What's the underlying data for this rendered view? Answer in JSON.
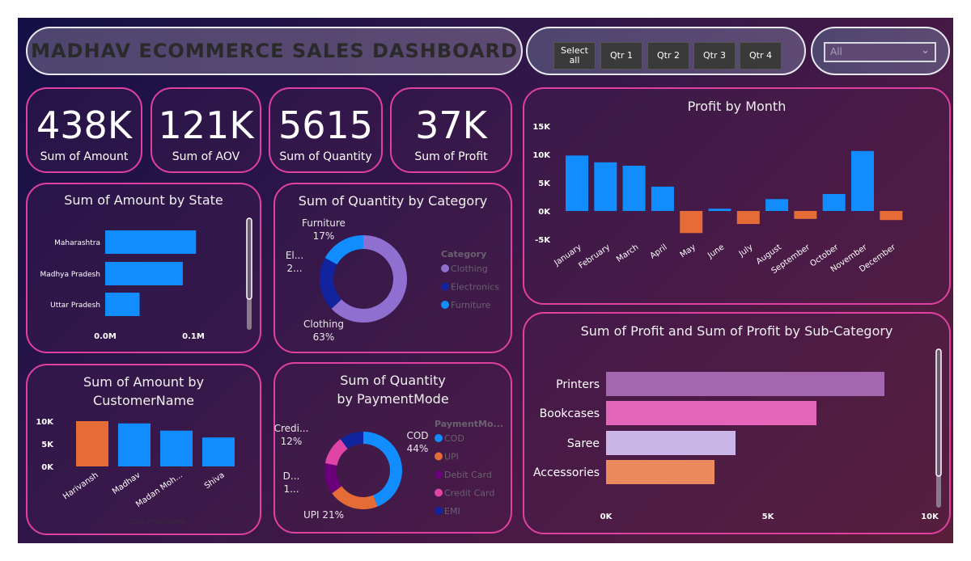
{
  "header": {
    "title": "MADHAV ECOMMERCE SALES DASHBOARD"
  },
  "slicer": {
    "buttons": [
      "Select all",
      "Qtr 1",
      "Qtr 2",
      "Qtr 3",
      "Qtr 4"
    ]
  },
  "dropdown": {
    "value": "All",
    "icon": "chevron-down-icon"
  },
  "kpis": [
    {
      "value": "438K",
      "label": "Sum of Amount"
    },
    {
      "value": "121K",
      "label": "Sum of AOV"
    },
    {
      "value": "5615",
      "label": "Sum of Quantity"
    },
    {
      "value": "37K",
      "label": "Sum of Profit"
    }
  ],
  "colors": {
    "blue": "#118dff",
    "orange": "#e66c37",
    "navy": "#12239e",
    "lavender": "#8f6fd0",
    "purple": "#6b007b",
    "pink": "#e044a7",
    "panel_border": "#e040a0"
  },
  "chart_data": [
    {
      "id": "state",
      "type": "bar",
      "orientation": "horizontal",
      "title": "Sum of Amount by State",
      "categories": [
        "Maharashtra",
        "Madhya Pradesh",
        "Uttar Pradesh"
      ],
      "values": [
        0.103,
        0.088,
        0.039
      ],
      "unit": "M",
      "xticks": [
        "0.0M",
        "0.1M"
      ],
      "xlim": [
        0,
        0.1
      ]
    },
    {
      "id": "category",
      "type": "pie",
      "donut": true,
      "title": "Sum of Quantity by Category",
      "legend_title": "Category",
      "categories": [
        "Clothing",
        "Electronics",
        "Furniture"
      ],
      "values": [
        63,
        20,
        17
      ],
      "labels": [
        "Clothing\n63%",
        "El...\n2...",
        "Furniture\n17%"
      ],
      "colors": [
        "#8f6fd0",
        "#12239e",
        "#118dff"
      ],
      "legend": "right"
    },
    {
      "id": "customer",
      "type": "bar",
      "title": "Sum of Amount by CustomerName",
      "xlabel": "CustomerName",
      "categories": [
        "Harivansh",
        "Madhav",
        "Madan Moh...",
        "Shiva"
      ],
      "values": [
        10000,
        9500,
        7900,
        6400
      ],
      "colors": [
        "#e66c37",
        "#118dff",
        "#118dff",
        "#118dff"
      ],
      "yticks": [
        "0K",
        "5K",
        "10K"
      ],
      "ylim": [
        0,
        10000
      ]
    },
    {
      "id": "payment",
      "type": "pie",
      "donut": true,
      "title": "Sum of Quantity by PaymentMode",
      "legend_title": "PaymentMo...",
      "categories": [
        "COD",
        "UPI",
        "Debit Card",
        "Credit Card",
        "EMI"
      ],
      "values": [
        44,
        21,
        13,
        12,
        10
      ],
      "labels": [
        "COD\n44%",
        "UPI 21%",
        "D...\n1...",
        "Credi...\n12%",
        ""
      ],
      "colors": [
        "#118dff",
        "#e66c37",
        "#6b007b",
        "#e044a7",
        "#12239e"
      ],
      "legend": "right"
    },
    {
      "id": "month",
      "type": "bar",
      "title": "Profit by Month",
      "categories": [
        "January",
        "February",
        "March",
        "April",
        "May",
        "June",
        "July",
        "August",
        "September",
        "October",
        "November",
        "December"
      ],
      "values": [
        9800,
        8600,
        8000,
        4300,
        -3900,
        400,
        -2300,
        2100,
        -1400,
        3000,
        10600,
        -1600
      ],
      "yticks": [
        "-5K",
        "0K",
        "5K",
        "10K",
        "15K"
      ],
      "ylim": [
        -5000,
        15000
      ],
      "positive_color": "#118dff",
      "negative_color": "#e66c37"
    },
    {
      "id": "subcategory",
      "type": "bar",
      "orientation": "horizontal",
      "title": "Sum of Profit and Sum of Profit by Sub-Category",
      "categories": [
        "Printers",
        "Bookcases",
        "Saree",
        "Accessories"
      ],
      "values": [
        8600,
        6500,
        4000,
        3350
      ],
      "colors": [
        "#a566b0",
        "#e565b8",
        "#c9b6e6",
        "#ec8a5e"
      ],
      "xticks": [
        "0K",
        "5K",
        "10K"
      ],
      "xlim": [
        0,
        10000
      ]
    }
  ]
}
